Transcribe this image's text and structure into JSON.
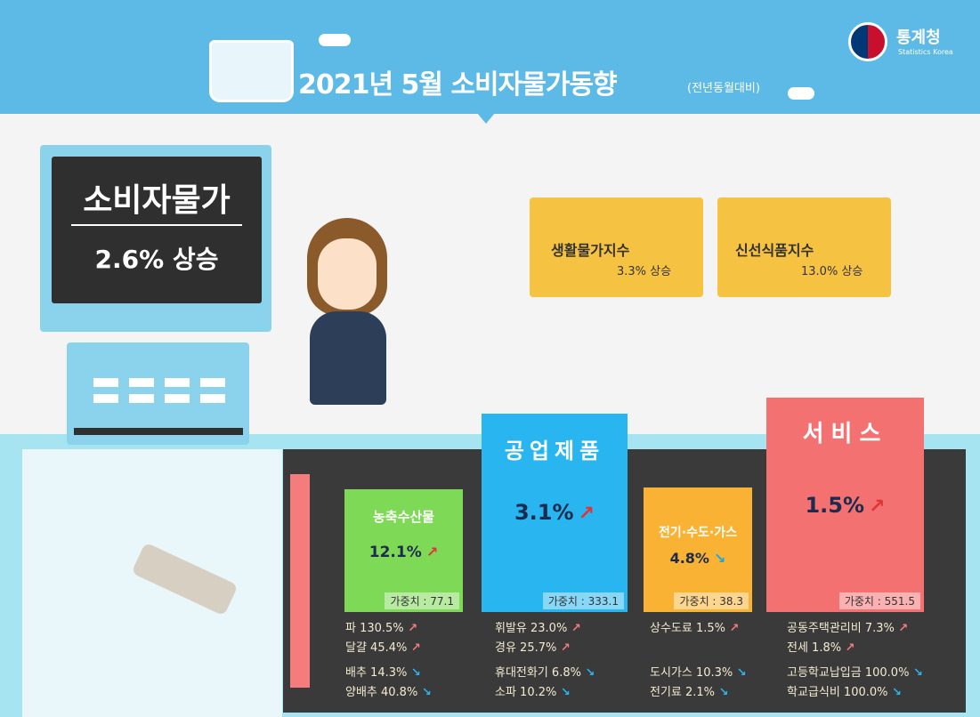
{
  "header": {
    "title": "2021년  5월 소비자물가동향",
    "subtitle": "(전년동월대비)"
  },
  "logo": {
    "name": "통계청",
    "sub": "Statistics Korea"
  },
  "cpi": {
    "label": "소비자물가",
    "value": "2.6% 상승"
  },
  "baskets": [
    {
      "title": "생활물가지수",
      "value": "3.3% 상승"
    },
    {
      "title": "신선식품지수",
      "value": "13.0% 상승"
    }
  ],
  "categories": [
    {
      "title": "농축수산물",
      "value": "12.1%",
      "trend": "up",
      "weight": "가중치 : 77.1",
      "color": "#7ed957"
    },
    {
      "title": "공업제품",
      "value": "3.1%",
      "trend": "up",
      "weight": "가중치 : 333.1",
      "color": "#29b6f0"
    },
    {
      "title": "전기·수도·가스",
      "value": "4.8%",
      "trend": "down",
      "weight": "가중치 : 38.3",
      "color": "#f9b233"
    },
    {
      "title": "서비스",
      "value": "1.5%",
      "trend": "up",
      "weight": "가중치 : 551.5",
      "color": "#f47172"
    }
  ],
  "items": [
    [
      {
        "t": "파 130.5%",
        "d": "up"
      },
      {
        "t": "달걀 45.4%",
        "d": "up"
      },
      {
        "t": "배추 14.3%",
        "d": "down"
      },
      {
        "t": "양배추 40.8%",
        "d": "down"
      }
    ],
    [
      {
        "t": "휘발유 23.0%",
        "d": "up"
      },
      {
        "t": "경유 25.7%",
        "d": "up"
      },
      {
        "t": "휴대전화기 6.8%",
        "d": "down"
      },
      {
        "t": "소파 10.2%",
        "d": "down"
      }
    ],
    [
      {
        "t": "상수도료 1.5%",
        "d": "up"
      },
      {
        "t": "",
        "d": ""
      },
      {
        "t": "도시가스 10.3%",
        "d": "down"
      },
      {
        "t": "전기료 2.1%",
        "d": "down"
      }
    ],
    [
      {
        "t": "공동주택관리비 7.3%",
        "d": "up"
      },
      {
        "t": "전세 1.8%",
        "d": "up"
      },
      {
        "t": "고등학교납입금 100.0%",
        "d": "down"
      },
      {
        "t": "학교급식비 100.0%",
        "d": "down"
      }
    ]
  ],
  "icons": {
    "up": "↗",
    "down": "↘"
  }
}
